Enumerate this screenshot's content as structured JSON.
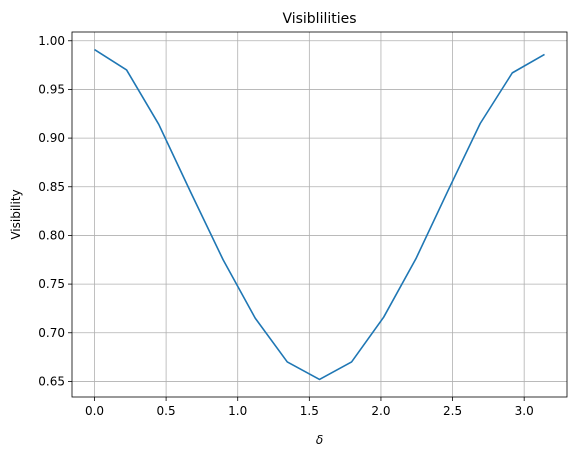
{
  "chart_data": {
    "type": "line",
    "title": "Visiblilities",
    "xlabel": "δ",
    "ylabel": "Visibility",
    "xlim": [
      -0.157,
      3.299
    ],
    "ylim": [
      0.634,
      1.009
    ],
    "grid": true,
    "xticks": [
      0.0,
      0.5,
      1.0,
      1.5,
      2.0,
      2.5,
      3.0
    ],
    "xtick_labels": [
      "0.0",
      "0.5",
      "1.0",
      "1.5",
      "2.0",
      "2.5",
      "3.0"
    ],
    "yticks": [
      0.65,
      0.7,
      0.75,
      0.8,
      0.85,
      0.9,
      0.95,
      1.0
    ],
    "ytick_labels": [
      "0.65",
      "0.70",
      "0.75",
      "0.80",
      "0.85",
      "0.90",
      "0.95",
      "1.00"
    ],
    "series": [
      {
        "color": "#1f77b4",
        "x": [
          0.0,
          0.224,
          0.449,
          0.673,
          0.898,
          1.122,
          1.346,
          1.571,
          1.795,
          2.019,
          2.244,
          2.468,
          2.693,
          2.917,
          3.142
        ],
        "y": [
          0.991,
          0.97,
          0.914,
          0.844,
          0.775,
          0.715,
          0.67,
          0.652,
          0.67,
          0.716,
          0.776,
          0.846,
          0.915,
          0.967,
          0.986
        ]
      }
    ]
  }
}
